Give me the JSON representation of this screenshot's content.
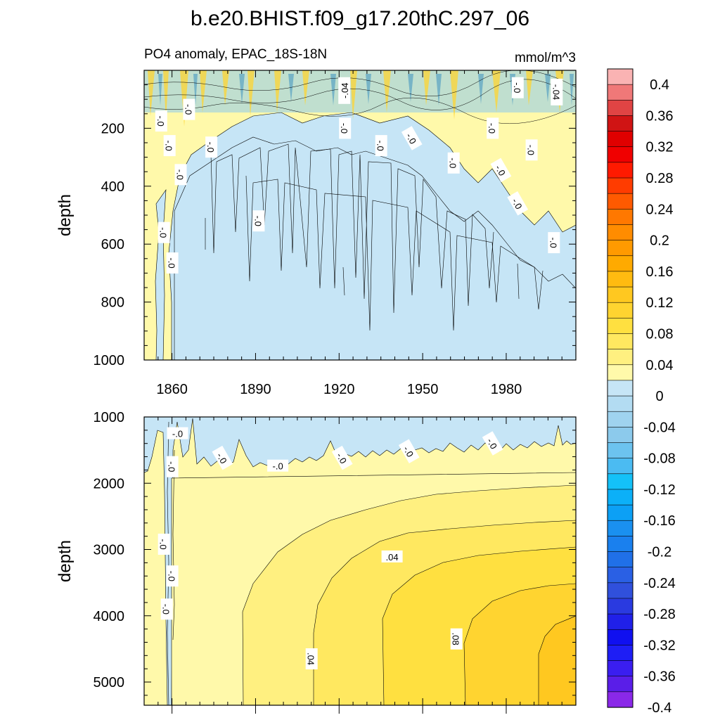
{
  "figure": {
    "title": "b.e20.BHIST.f09_g17.20thC.297_06",
    "subtitle_left": "PO4 anomaly, EPAC_18S-18N",
    "subtitle_right": "mmol/m^3"
  },
  "colors": {
    "zero_band": "#fff9aa",
    "neg_band": "#c6e5f6",
    "line": "#000000"
  },
  "colorbar": {
    "labels": [
      "0.4",
      "0.36",
      "0.32",
      "0.28",
      "0.24",
      "0.2",
      "0.16",
      "0.12",
      "0.08",
      "0.04",
      "0",
      "-0.04",
      "-0.08",
      "-0.12",
      "-0.16",
      "-0.2",
      "-0.24",
      "-0.28",
      "-0.32",
      "-0.36",
      "-0.4"
    ],
    "colors": [
      "#fab3b3",
      "#f07878",
      "#e04444",
      "#d01414",
      "#e00000",
      "#f00000",
      "#ff1a00",
      "#ff3c00",
      "#ff5a00",
      "#ff7800",
      "#ff8c00",
      "#ff9a00",
      "#ffaa00",
      "#ffbb10",
      "#ffc820",
      "#ffd430",
      "#ffe040",
      "#ffe860",
      "#fff080",
      "#fff9aa",
      "#c6e5f6",
      "#b3dcf2",
      "#9fd3ef",
      "#8ccaec",
      "#6cc3ef",
      "#4bbbf2",
      "#14c1f8",
      "#0cb0f8",
      "#0ca0f5",
      "#1a90f0",
      "#1a80ee",
      "#2070e8",
      "#2a60e4",
      "#3050dc",
      "#2a3ae0",
      "#2020e8",
      "#1010f0",
      "#1e1ef5",
      "#3a1ef0",
      "#5a1ee8",
      "#8a28e8"
    ]
  },
  "chart_data": [
    {
      "type": "contour",
      "name": "upper-panel",
      "ylabel": "depth",
      "xlim": [
        1850,
        2005
      ],
      "ylim": [
        1000,
        0
      ],
      "x_ticks": [
        "1860",
        "1890",
        "1920",
        "1950",
        "1980"
      ],
      "y_ticks": [
        "200",
        "400",
        "600",
        "800",
        "1000"
      ],
      "contour_labels": [
        {
          "text": "-.04",
          "x": 1922,
          "y": 70,
          "rotate": -90
        },
        {
          "text": "-.04",
          "x": 1998,
          "y": 75,
          "rotate": 90
        },
        {
          "text": "-.0",
          "x": 1984,
          "y": 60,
          "rotate": 90
        },
        {
          "text": "-.0",
          "x": 1856,
          "y": 175,
          "rotate": 90
        },
        {
          "text": "-.0",
          "x": 1866,
          "y": 135,
          "rotate": 90
        },
        {
          "text": "-.0",
          "x": 1859,
          "y": 260,
          "rotate": 90
        },
        {
          "text": "-.0",
          "x": 1863,
          "y": 360,
          "rotate": 90
        },
        {
          "text": "-.0",
          "x": 1874,
          "y": 265,
          "rotate": 90
        },
        {
          "text": "-.0",
          "x": 1922,
          "y": 200,
          "rotate": 90
        },
        {
          "text": "-.0",
          "x": 1935,
          "y": 260,
          "rotate": 90
        },
        {
          "text": "-.0",
          "x": 1946,
          "y": 235,
          "rotate": 60
        },
        {
          "text": "-.0",
          "x": 1961,
          "y": 320,
          "rotate": 90
        },
        {
          "text": "-.0",
          "x": 1975,
          "y": 200,
          "rotate": 90
        },
        {
          "text": "-.0",
          "x": 1978,
          "y": 345,
          "rotate": 60
        },
        {
          "text": "-.0",
          "x": 1989,
          "y": 275,
          "rotate": 90
        },
        {
          "text": "-.0",
          "x": 1984,
          "y": 460,
          "rotate": 60
        },
        {
          "text": "-.0",
          "x": 1891,
          "y": 520,
          "rotate": 90
        },
        {
          "text": "-.0",
          "x": 1857,
          "y": 560,
          "rotate": 90
        },
        {
          "text": "-.0",
          "x": 1860,
          "y": 665,
          "rotate": 90
        },
        {
          "text": "-.0",
          "x": 1997,
          "y": 595,
          "rotate": 90
        }
      ]
    },
    {
      "type": "contour",
      "name": "lower-panel",
      "ylabel": "depth",
      "xlim": [
        1850,
        2005
      ],
      "ylim": [
        5350,
        1000
      ],
      "y_ticks": [
        "1000",
        "2000",
        "3000",
        "4000",
        "5000"
      ],
      "contour_labels": [
        {
          "text": "-.0",
          "x": 1862,
          "y": 1250,
          "rotate": 0
        },
        {
          "text": "-.0",
          "x": 1860,
          "y": 1750,
          "rotate": 90
        },
        {
          "text": "-.0",
          "x": 1878,
          "y": 1620,
          "rotate": 60
        },
        {
          "text": "-.0",
          "x": 1898,
          "y": 1740,
          "rotate": 0
        },
        {
          "text": "-.0",
          "x": 1921,
          "y": 1620,
          "rotate": 60
        },
        {
          "text": "-.0",
          "x": 1945,
          "y": 1520,
          "rotate": 60
        },
        {
          "text": "-.0",
          "x": 1975,
          "y": 1400,
          "rotate": 60
        },
        {
          "text": "-.0",
          "x": 1857,
          "y": 2920,
          "rotate": 90
        },
        {
          "text": "-.0",
          "x": 1860,
          "y": 3400,
          "rotate": 90
        },
        {
          "text": "-.0",
          "x": 1858,
          "y": 3900,
          "rotate": 90
        },
        {
          "text": ".04",
          "x": 1939,
          "y": 3110,
          "rotate": 0
        },
        {
          "text": ".04",
          "x": 1910,
          "y": 4650,
          "rotate": 90
        },
        {
          "text": ".08",
          "x": 1962,
          "y": 4350,
          "rotate": 90
        }
      ]
    }
  ]
}
